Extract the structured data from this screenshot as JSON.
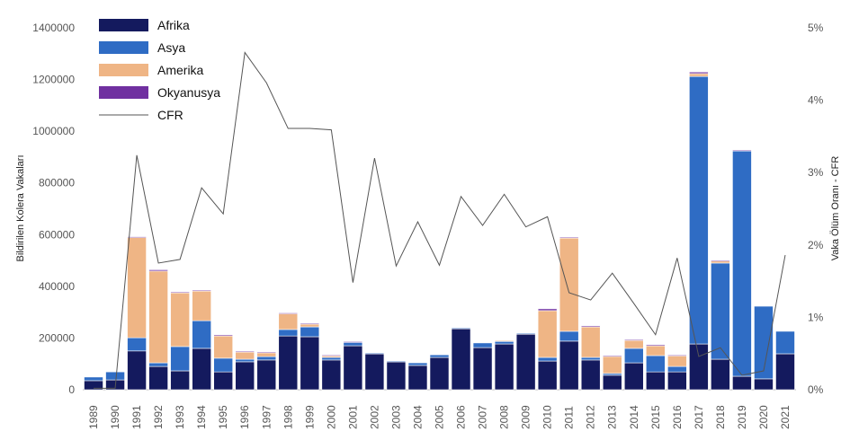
{
  "chart_data": {
    "type": "bar",
    "stacked": true,
    "title": "",
    "xlabel": "",
    "ylabel": "Bildirilen Kolera Vakaları",
    "y2label": "Vaka Ölüm Oranı - CFR",
    "ylim": [
      0,
      1400000
    ],
    "y2lim": [
      0,
      5
    ],
    "yticks": [
      "0",
      "200000",
      "400000",
      "600000",
      "800000",
      "1000000",
      "1200000",
      "1400000"
    ],
    "y2ticks": [
      "0%",
      "1%",
      "2%",
      "3%",
      "4%",
      "5%"
    ],
    "legend_position": "top-left",
    "categories": [
      "1989",
      "1990",
      "1991",
      "1992",
      "1993",
      "1994",
      "1995",
      "1996",
      "1997",
      "1998",
      "1999",
      "2000",
      "2001",
      "2002",
      "2003",
      "2004",
      "2005",
      "2006",
      "2007",
      "2008",
      "2009",
      "2010",
      "2011",
      "2012",
      "2013",
      "2014",
      "2015",
      "2016",
      "2017",
      "2018",
      "2019",
      "2020",
      "2021"
    ],
    "series": [
      {
        "name": "Afrika",
        "color": "#141a5e",
        "values": [
          35000,
          38000,
          150000,
          90000,
          73000,
          160000,
          69000,
          108000,
          115000,
          208000,
          205000,
          115000,
          170000,
          139000,
          108000,
          94000,
          125000,
          236000,
          163000,
          177000,
          215000,
          111000,
          188000,
          115000,
          56000,
          104000,
          69000,
          69000,
          177000,
          118000,
          52000,
          42000,
          139000
        ]
      },
      {
        "name": "Asya",
        "color": "#2f6cc4",
        "values": [
          14000,
          31000,
          51000,
          14000,
          94000,
          107000,
          53000,
          10000,
          13000,
          25000,
          38000,
          10000,
          14000,
          3000,
          3000,
          10000,
          10000,
          3000,
          18000,
          11000,
          3000,
          14000,
          38000,
          10000,
          7000,
          56000,
          63000,
          21000,
          1035000,
          372000,
          872000,
          281000,
          87000
        ]
      },
      {
        "name": "Amerika",
        "color": "#efb585",
        "values": [
          0,
          0,
          390000,
          355000,
          208000,
          115000,
          86000,
          28000,
          15000,
          62000,
          11000,
          7000,
          0,
          0,
          0,
          0,
          0,
          0,
          0,
          2000,
          0,
          181000,
          361000,
          118000,
          66000,
          31000,
          38000,
          42000,
          11000,
          10000,
          0,
          0,
          0
        ]
      },
      {
        "name": "Okyanusya",
        "color": "#7030a0",
        "values": [
          0,
          0,
          1000,
          5000,
          3000,
          3000,
          4000,
          3000,
          3000,
          2000,
          3000,
          2000,
          2000,
          0,
          0,
          0,
          0,
          0,
          0,
          0,
          0,
          7000,
          3000,
          4000,
          3000,
          3000,
          4000,
          2000,
          6000,
          1000,
          3000,
          0,
          0
        ]
      }
    ],
    "line_series": {
      "name": "CFR",
      "color": "#555555",
      "axis": "right",
      "values": [
        0.02,
        0.02,
        3.24,
        1.75,
        1.8,
        2.79,
        2.43,
        4.66,
        4.24,
        3.61,
        3.61,
        3.59,
        1.48,
        3.2,
        1.71,
        2.32,
        1.72,
        2.67,
        2.27,
        2.7,
        2.25,
        2.39,
        1.34,
        1.24,
        1.61,
        1.19,
        0.76,
        1.82,
        0.46,
        0.58,
        0.2,
        0.26,
        1.86
      ]
    }
  }
}
